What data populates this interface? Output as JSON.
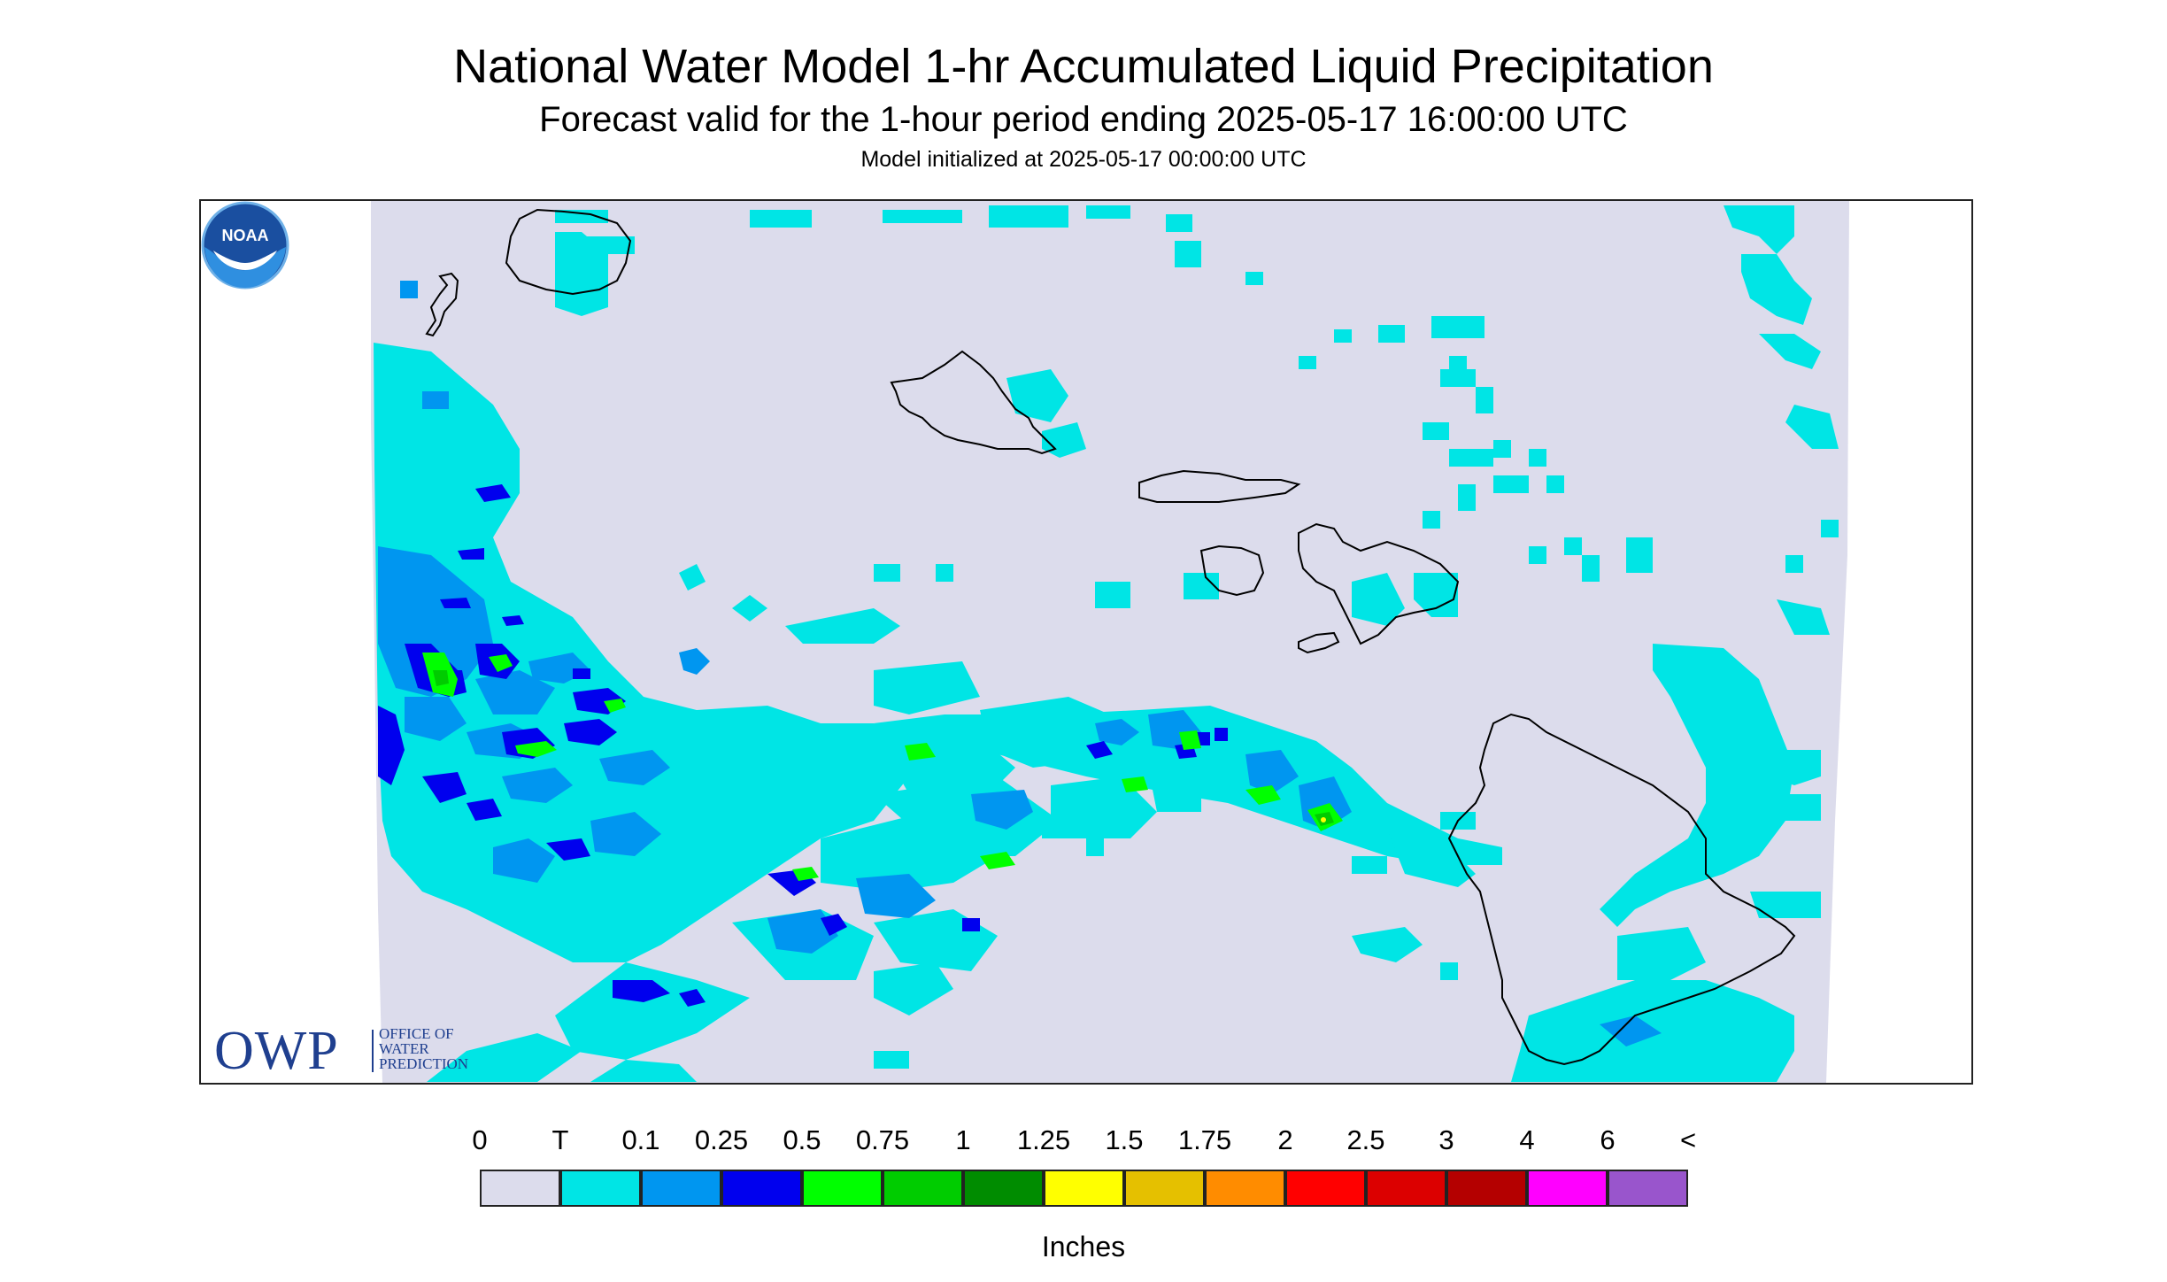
{
  "title": "National Water Model 1-hr Accumulated Liquid Precipitation",
  "subtitle": "Forecast valid for the 1-hour period ending 2025-05-17 16:00:00 UTC",
  "init_text": "Model initialized at 2025-05-17 00:00:00 UTC",
  "owp": {
    "abbr": "OWP",
    "line1": "OFFICE OF",
    "line2": "WATER",
    "line3": "PREDICTION"
  },
  "noaa": {
    "text": "NOAA"
  },
  "legend": {
    "units": "Inches",
    "labels": [
      "0",
      "T",
      "0.1",
      "0.25",
      "0.5",
      "0.75",
      "1",
      "1.25",
      "1.5",
      "1.75",
      "2",
      "2.5",
      "3",
      "4",
      "6",
      "<"
    ],
    "colors": [
      "#dcdcec",
      "#00e5e5",
      "#0096f0",
      "#0000ee",
      "#00ff00",
      "#00cc00",
      "#008c00",
      "#ffff00",
      "#e5c000",
      "#ff8c00",
      "#ff0000",
      "#dc0000",
      "#b40000",
      "#ff00ff",
      "#9955cc"
    ]
  },
  "map": {
    "background_color": "#dcdcec",
    "coastline_color": "#000000",
    "islands": [
      "Niihau",
      "Kauai",
      "Oahu",
      "Molokai",
      "Lanai",
      "Maui",
      "Kahoolawe",
      "Hawaii"
    ]
  }
}
